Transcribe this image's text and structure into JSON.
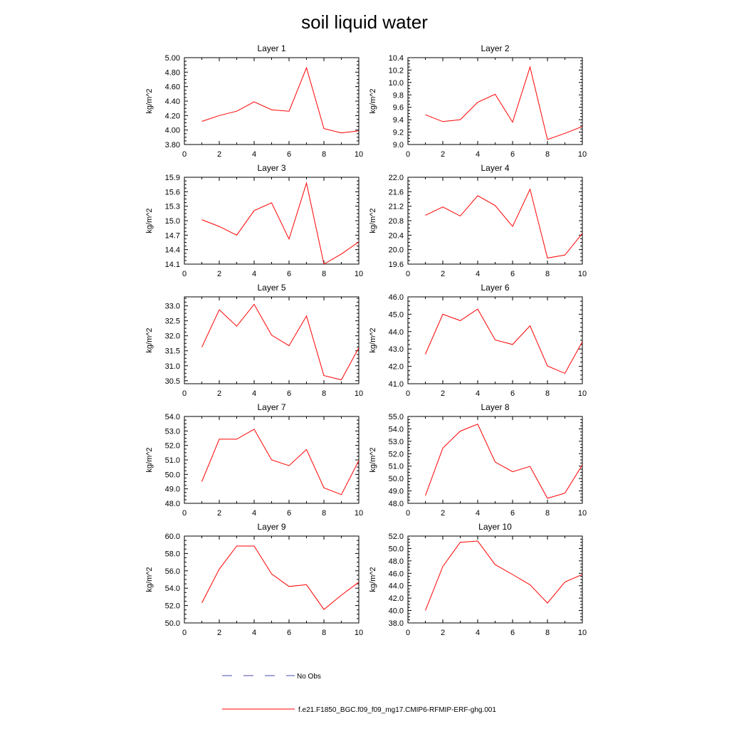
{
  "title": "soil liquid water",
  "colors": {
    "model": "#ff0000",
    "obs": "#4a4aa8",
    "axis": "#000000"
  },
  "legend": {
    "obs_label": "No Obs",
    "model_label": "f.e21.F1850_BGC.f09_f09_mg17.CMIP6-RFMIP-ERF-ghg.001"
  },
  "chart_data": [
    {
      "type": "line",
      "title": "Layer 1",
      "ylabel": "kg/m^2",
      "xlabel": "",
      "xlim": [
        0,
        10
      ],
      "ylim": [
        3.8,
        5.0
      ],
      "xticks": [
        "0",
        "2",
        "4",
        "6",
        "8",
        "10"
      ],
      "yticks": [
        "3.80",
        "4.00",
        "4.20",
        "4.40",
        "4.60",
        "4.80",
        "5.00"
      ],
      "x": [
        1,
        2,
        3,
        4,
        5,
        6,
        7,
        8,
        9,
        10
      ],
      "series": [
        {
          "name": "f.e21.F1850_BGC.f09_f09_mg17.CMIP6-RFMIP-ERF-ghg.001",
          "values": [
            4.12,
            4.2,
            4.26,
            4.39,
            4.28,
            4.26,
            4.86,
            4.02,
            3.96,
            3.99
          ]
        }
      ]
    },
    {
      "type": "line",
      "title": "Layer 2",
      "ylabel": "kg/m^2",
      "xlabel": "",
      "xlim": [
        0,
        10
      ],
      "ylim": [
        9.0,
        10.4
      ],
      "xticks": [
        "0",
        "2",
        "4",
        "6",
        "8",
        "10"
      ],
      "yticks": [
        "9.0",
        "9.2",
        "9.4",
        "9.6",
        "9.8",
        "10.0",
        "10.2",
        "10.4"
      ],
      "x": [
        1,
        2,
        3,
        4,
        5,
        6,
        7,
        8,
        9,
        10
      ],
      "series": [
        {
          "name": "f.e21.F1850_BGC.f09_f09_mg17.CMIP6-RFMIP-ERF-ghg.001",
          "values": [
            9.48,
            9.37,
            9.4,
            9.68,
            9.81,
            9.36,
            10.25,
            9.08,
            9.18,
            9.29
          ]
        }
      ]
    },
    {
      "type": "line",
      "title": "Layer 3",
      "ylabel": "kg/m^2",
      "xlabel": "",
      "xlim": [
        0,
        10
      ],
      "ylim": [
        14.1,
        15.9
      ],
      "xticks": [
        "0",
        "2",
        "4",
        "6",
        "8",
        "10"
      ],
      "yticks": [
        "14.1",
        "14.4",
        "14.7",
        "15.0",
        "15.3",
        "15.6",
        "15.9"
      ],
      "x": [
        1,
        2,
        3,
        4,
        5,
        6,
        7,
        8,
        9,
        10
      ],
      "series": [
        {
          "name": "f.e21.F1850_BGC.f09_f09_mg17.CMIP6-RFMIP-ERF-ghg.001",
          "values": [
            15.02,
            14.88,
            14.7,
            15.21,
            15.37,
            14.62,
            15.78,
            14.1,
            14.31,
            14.56
          ]
        }
      ]
    },
    {
      "type": "line",
      "title": "Layer 4",
      "ylabel": "kg/m^2",
      "xlabel": "",
      "xlim": [
        0,
        10
      ],
      "ylim": [
        19.6,
        22.0
      ],
      "xticks": [
        "0",
        "2",
        "4",
        "6",
        "8",
        "10"
      ],
      "yticks": [
        "19.6",
        "20.0",
        "20.4",
        "20.8",
        "21.2",
        "21.6",
        "22.0"
      ],
      "x": [
        1,
        2,
        3,
        4,
        5,
        6,
        7,
        8,
        9,
        10
      ],
      "series": [
        {
          "name": "f.e21.F1850_BGC.f09_f09_mg17.CMIP6-RFMIP-ERF-ghg.001",
          "values": [
            20.95,
            21.18,
            20.93,
            21.49,
            21.22,
            20.64,
            21.67,
            19.77,
            19.85,
            20.45
          ]
        }
      ]
    },
    {
      "type": "line",
      "title": "Layer 5",
      "ylabel": "kg/m^2",
      "xlabel": "",
      "xlim": [
        0,
        10
      ],
      "ylim": [
        30.4,
        33.3
      ],
      "xticks": [
        "0",
        "2",
        "4",
        "6",
        "8",
        "10"
      ],
      "yticks": [
        "30.5",
        "31.0",
        "31.5",
        "32.0",
        "32.5",
        "33.0"
      ],
      "x": [
        1,
        2,
        3,
        4,
        5,
        6,
        7,
        8,
        9,
        10
      ],
      "series": [
        {
          "name": "f.e21.F1850_BGC.f09_f09_mg17.CMIP6-RFMIP-ERF-ghg.001",
          "values": [
            31.62,
            32.87,
            32.32,
            33.05,
            32.02,
            31.67,
            32.66,
            30.67,
            30.53,
            31.6
          ]
        }
      ]
    },
    {
      "type": "line",
      "title": "Layer 6",
      "ylabel": "kg/m^2",
      "xlabel": "",
      "xlim": [
        0,
        10
      ],
      "ylim": [
        41.0,
        46.0
      ],
      "xticks": [
        "0",
        "2",
        "4",
        "6",
        "8",
        "10"
      ],
      "yticks": [
        "41.0",
        "42.0",
        "43.0",
        "44.0",
        "45.0",
        "46.0"
      ],
      "x": [
        1,
        2,
        3,
        4,
        5,
        6,
        7,
        8,
        9,
        10
      ],
      "series": [
        {
          "name": "f.e21.F1850_BGC.f09_f09_mg17.CMIP6-RFMIP-ERF-ghg.001",
          "values": [
            42.7,
            45.0,
            44.63,
            45.3,
            43.52,
            43.26,
            44.33,
            42.02,
            41.6,
            43.42
          ]
        }
      ]
    },
    {
      "type": "line",
      "title": "Layer 7",
      "ylabel": "kg/m^2",
      "xlabel": "",
      "xlim": [
        0,
        10
      ],
      "ylim": [
        48.0,
        54.0
      ],
      "xticks": [
        "0",
        "2",
        "4",
        "6",
        "8",
        "10"
      ],
      "yticks": [
        "48.0",
        "49.0",
        "50.0",
        "51.0",
        "52.0",
        "53.0",
        "54.0"
      ],
      "x": [
        1,
        2,
        3,
        4,
        5,
        6,
        7,
        8,
        9,
        10
      ],
      "series": [
        {
          "name": "f.e21.F1850_BGC.f09_f09_mg17.CMIP6-RFMIP-ERF-ghg.001",
          "values": [
            49.5,
            52.43,
            52.43,
            53.12,
            51.0,
            50.6,
            51.72,
            49.07,
            48.6,
            50.95
          ]
        }
      ]
    },
    {
      "type": "line",
      "title": "Layer 8",
      "ylabel": "kg/m^2",
      "xlabel": "",
      "xlim": [
        0,
        10
      ],
      "ylim": [
        48.0,
        55.0
      ],
      "xticks": [
        "0",
        "2",
        "4",
        "6",
        "8",
        "10"
      ],
      "yticks": [
        "48.0",
        "49.0",
        "50.0",
        "51.0",
        "52.0",
        "53.0",
        "54.0",
        "55.0"
      ],
      "x": [
        1,
        2,
        3,
        4,
        5,
        6,
        7,
        8,
        9,
        10
      ],
      "series": [
        {
          "name": "f.e21.F1850_BGC.f09_f09_mg17.CMIP6-RFMIP-ERF-ghg.001",
          "values": [
            48.62,
            52.45,
            53.82,
            54.38,
            51.33,
            50.55,
            50.97,
            48.4,
            48.82,
            51.1
          ]
        }
      ]
    },
    {
      "type": "line",
      "title": "Layer 9",
      "ylabel": "kg/m^2",
      "xlabel": "",
      "xlim": [
        0,
        10
      ],
      "ylim": [
        50.0,
        60.0
      ],
      "xticks": [
        "0",
        "2",
        "4",
        "6",
        "8",
        "10"
      ],
      "yticks": [
        "50.0",
        "52.0",
        "54.0",
        "56.0",
        "58.0",
        "60.0"
      ],
      "x": [
        1,
        2,
        3,
        4,
        5,
        6,
        7,
        8,
        9,
        10
      ],
      "series": [
        {
          "name": "f.e21.F1850_BGC.f09_f09_mg17.CMIP6-RFMIP-ERF-ghg.001",
          "values": [
            52.3,
            56.2,
            58.85,
            58.85,
            55.65,
            54.2,
            54.4,
            51.55,
            53.2,
            54.7
          ]
        }
      ]
    },
    {
      "type": "line",
      "title": "Layer 10",
      "ylabel": "kg/m^2",
      "xlabel": "",
      "xlim": [
        0,
        10
      ],
      "ylim": [
        38.0,
        52.0
      ],
      "xticks": [
        "0",
        "2",
        "4",
        "6",
        "8",
        "10"
      ],
      "yticks": [
        "38.0",
        "40.0",
        "42.0",
        "44.0",
        "46.0",
        "48.0",
        "50.0",
        "52.0"
      ],
      "x": [
        1,
        2,
        3,
        4,
        5,
        6,
        7,
        8,
        9,
        10
      ],
      "series": [
        {
          "name": "f.e21.F1850_BGC.f09_f09_mg17.CMIP6-RFMIP-ERF-ghg.001",
          "values": [
            40.0,
            47.1,
            51.0,
            51.2,
            47.4,
            45.8,
            44.15,
            41.2,
            44.6,
            45.8
          ]
        }
      ]
    }
  ]
}
